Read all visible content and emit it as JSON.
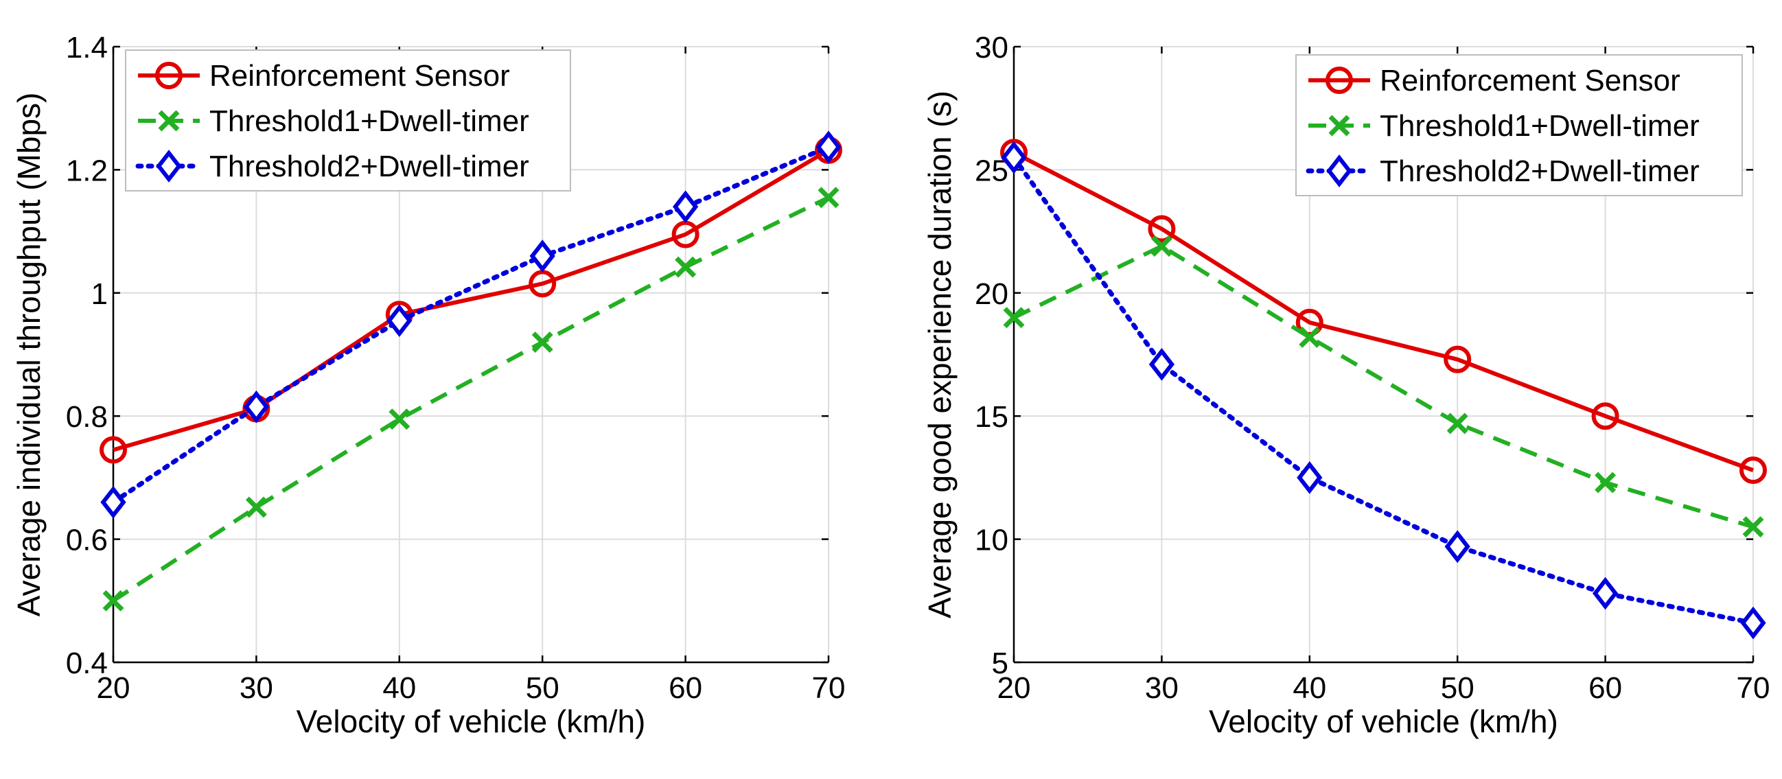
{
  "chart_data": [
    {
      "type": "line",
      "title": "",
      "xlabel": "Velocity of vehicle (km/h)",
      "ylabel": "Average individual throughput (Mbps)",
      "xlim": [
        20,
        70
      ],
      "ylim": [
        0.4,
        1.4
      ],
      "xticks": [
        20,
        30,
        40,
        50,
        60,
        70
      ],
      "yticks": [
        0.4,
        0.6,
        0.8,
        1,
        1.2,
        1.4
      ],
      "ytick_labels": [
        "0.4",
        "0.6",
        "0.8",
        "1",
        "1.2",
        "1.4"
      ],
      "grid": true,
      "legend_position": "top-left",
      "x": [
        20,
        30,
        40,
        50,
        60,
        70
      ],
      "series": [
        {
          "name": "Reinforcement Sensor",
          "color": "#e00000",
          "style": "solid",
          "marker": "circle",
          "values": [
            0.745,
            0.812,
            0.965,
            1.015,
            1.095,
            1.232
          ]
        },
        {
          "name": "Threshold1+Dwell-timer",
          "color": "#22b022",
          "style": "dashed",
          "marker": "x",
          "values": [
            0.5,
            0.652,
            0.795,
            0.92,
            1.042,
            1.155
          ]
        },
        {
          "name": "Threshold2+Dwell-timer",
          "color": "#0000dd",
          "style": "dotted",
          "marker": "diamond",
          "values": [
            0.66,
            0.815,
            0.955,
            1.06,
            1.14,
            1.237
          ]
        }
      ]
    },
    {
      "type": "line",
      "title": "",
      "xlabel": "Velocity of vehicle (km/h)",
      "ylabel": "Average good experience duration (s)",
      "xlim": [
        20,
        70
      ],
      "ylim": [
        5,
        30
      ],
      "xticks": [
        20,
        30,
        40,
        50,
        60,
        70
      ],
      "yticks": [
        5,
        10,
        15,
        20,
        25,
        30
      ],
      "ytick_labels": [
        "5",
        "10",
        "15",
        "20",
        "25",
        "30"
      ],
      "grid": true,
      "legend_position": "top-right",
      "x": [
        20,
        30,
        40,
        50,
        60,
        70
      ],
      "series": [
        {
          "name": "Reinforcement Sensor",
          "color": "#e00000",
          "style": "solid",
          "marker": "circle",
          "values": [
            25.7,
            22.6,
            18.8,
            17.3,
            15.0,
            12.8
          ]
        },
        {
          "name": "Threshold1+Dwell-timer",
          "color": "#22b022",
          "style": "dashed",
          "marker": "x",
          "values": [
            19.0,
            21.9,
            18.2,
            14.7,
            12.3,
            10.5
          ]
        },
        {
          "name": "Threshold2+Dwell-timer",
          "color": "#0000dd",
          "style": "dotted",
          "marker": "diamond",
          "values": [
            25.5,
            17.1,
            12.5,
            9.7,
            7.8,
            6.6
          ]
        }
      ]
    }
  ]
}
